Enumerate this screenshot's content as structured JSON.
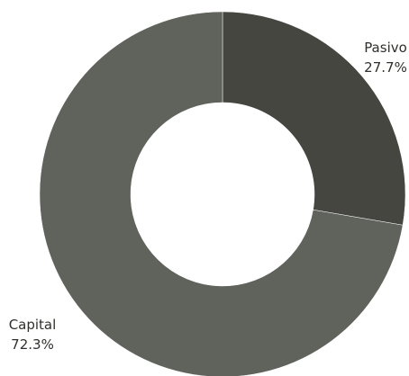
{
  "chart_data": {
    "type": "donut",
    "title": "",
    "slices": [
      {
        "name": "Pasivo",
        "value": 27.7,
        "label": "27.7%",
        "color": "#454640"
      },
      {
        "name": "Capital",
        "value": 72.3,
        "label": "72.3%",
        "color": "#5f635c"
      }
    ],
    "legend": "none",
    "background": "#ffffff"
  }
}
